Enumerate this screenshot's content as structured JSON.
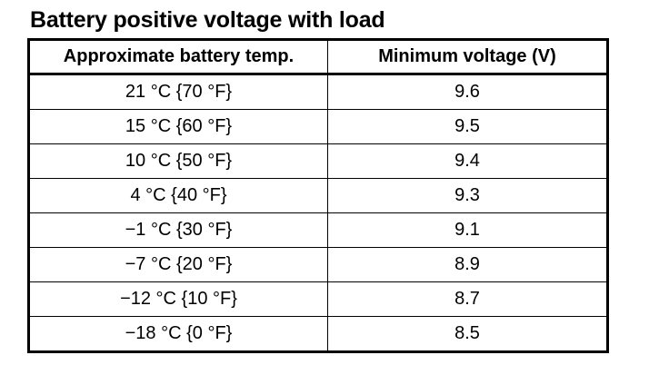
{
  "title": "Battery positive voltage with load",
  "table": {
    "headers": [
      "Approximate battery temp.",
      "Minimum voltage (V)"
    ],
    "rows": [
      {
        "temp": "21 °C {70 °F}",
        "voltage": "9.6"
      },
      {
        "temp": "15 °C {60 °F}",
        "voltage": "9.5"
      },
      {
        "temp": "10 °C {50 °F}",
        "voltage": "9.4"
      },
      {
        "temp": "4 °C {40 °F}",
        "voltage": "9.3"
      },
      {
        "temp": "−1 °C {30 °F}",
        "voltage": "9.1"
      },
      {
        "temp": "−7 °C {20 °F}",
        "voltage": "8.9"
      },
      {
        "temp": "−12 °C {10 °F}",
        "voltage": "8.7"
      },
      {
        "temp": "−18 °C {0 °F}",
        "voltage": "8.5"
      }
    ]
  }
}
